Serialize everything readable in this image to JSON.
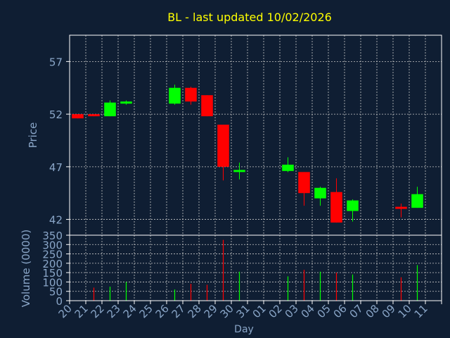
{
  "chart_data": [
    {
      "type": "candlestick",
      "title": "BL - last updated 10/02/2026",
      "ylabel": "Price",
      "ylim": [
        40.5,
        59.5
      ],
      "yticks": [
        42,
        47,
        52,
        57
      ],
      "grid": true,
      "categories": [
        "20",
        "21",
        "22",
        "23",
        "24",
        "25",
        "26",
        "27",
        "28",
        "29",
        "30",
        "31",
        "01",
        "02",
        "03",
        "04",
        "05",
        "06",
        "07",
        "08",
        "09",
        "10",
        "11"
      ],
      "candles": [
        {
          "x": "20",
          "open": 52.0,
          "close": 51.6,
          "high": 52.0,
          "low": 51.6
        },
        {
          "x": "21",
          "open": 52.0,
          "close": 51.8,
          "high": 52.0,
          "low": 51.8
        },
        {
          "x": "22",
          "open": 51.8,
          "close": 53.1,
          "high": 53.3,
          "low": 51.8
        },
        {
          "x": "23",
          "open": 53.0,
          "close": 53.2,
          "high": 53.3,
          "low": 52.9
        },
        {
          "x": "26",
          "open": 53.0,
          "close": 54.5,
          "high": 54.8,
          "low": 52.9
        },
        {
          "x": "27",
          "open": 54.5,
          "close": 53.2,
          "high": 54.6,
          "low": 52.9
        },
        {
          "x": "28",
          "open": 53.8,
          "close": 51.8,
          "high": 53.8,
          "low": 51.8
        },
        {
          "x": "29",
          "open": 51.0,
          "close": 47.0,
          "high": 51.0,
          "low": 45.7
        },
        {
          "x": "30",
          "open": 46.5,
          "close": 46.7,
          "high": 47.4,
          "low": 45.8
        },
        {
          "x": "02",
          "open": 46.6,
          "close": 47.2,
          "high": 47.9,
          "low": 46.5
        },
        {
          "x": "03",
          "open": 46.5,
          "close": 44.5,
          "high": 46.5,
          "low": 43.3
        },
        {
          "x": "04",
          "open": 44.0,
          "close": 45.0,
          "high": 45.1,
          "low": 43.3
        },
        {
          "x": "05",
          "open": 44.6,
          "close": 41.7,
          "high": 45.9,
          "low": 41.7
        },
        {
          "x": "06",
          "open": 42.8,
          "close": 43.8,
          "high": 43.9,
          "low": 41.8
        },
        {
          "x": "09",
          "open": 43.2,
          "close": 43.0,
          "high": 43.5,
          "low": 42.2
        },
        {
          "x": "10",
          "open": 43.1,
          "close": 44.4,
          "high": 45.1,
          "low": 43.1
        }
      ]
    },
    {
      "type": "bar",
      "ylabel": "Volume (0000)",
      "xlabel": "Day",
      "ylim": [
        0,
        350
      ],
      "yticks": [
        0,
        50,
        100,
        150,
        200,
        250,
        300,
        350
      ],
      "categories": [
        "20",
        "21",
        "22",
        "23",
        "24",
        "25",
        "26",
        "27",
        "28",
        "29",
        "30",
        "31",
        "01",
        "02",
        "03",
        "04",
        "05",
        "06",
        "07",
        "08",
        "09",
        "10",
        "11"
      ],
      "values": [
        {
          "x": "21",
          "value": 70,
          "dir": "down"
        },
        {
          "x": "22",
          "value": 75,
          "dir": "up"
        },
        {
          "x": "23",
          "value": 100,
          "dir": "up"
        },
        {
          "x": "26",
          "value": 60,
          "dir": "up"
        },
        {
          "x": "27",
          "value": 90,
          "dir": "down"
        },
        {
          "x": "28",
          "value": 85,
          "dir": "down"
        },
        {
          "x": "29",
          "value": 325,
          "dir": "down"
        },
        {
          "x": "30",
          "value": 155,
          "dir": "up"
        },
        {
          "x": "02",
          "value": 130,
          "dir": "up"
        },
        {
          "x": "03",
          "value": 165,
          "dir": "down"
        },
        {
          "x": "04",
          "value": 155,
          "dir": "up"
        },
        {
          "x": "05",
          "value": 150,
          "dir": "down"
        },
        {
          "x": "06",
          "value": 140,
          "dir": "up"
        },
        {
          "x": "09",
          "value": 125,
          "dir": "down"
        },
        {
          "x": "10",
          "value": 190,
          "dir": "up"
        }
      ]
    }
  ],
  "colors": {
    "background": "#0f1e33",
    "frame": "#ffffff",
    "grid": "#c8c8c8",
    "title": "#ffff00",
    "axis_text": "#8aa6c8",
    "up": "#00ff00",
    "down": "#ff0000"
  }
}
